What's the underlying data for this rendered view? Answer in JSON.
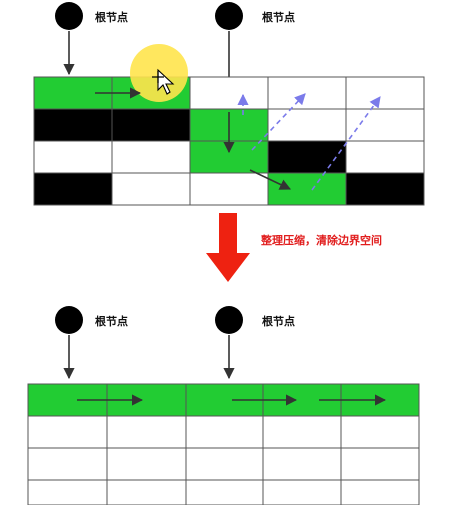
{
  "root_label": "根节点",
  "caption": "整理压缩，清除边界空间",
  "colors": {
    "live": "#22cc33",
    "garbage": "#000000",
    "free": "#ffffff",
    "grid_line": "#555555",
    "cursor_highlight": "#ffe44d",
    "dashed_arrow": "#7b7bea",
    "compact_arrow": "#ee2211"
  },
  "before_grid": {
    "rows": 4,
    "cols": 5,
    "cells": [
      [
        "live",
        "live",
        "free",
        "free",
        "free"
      ],
      [
        "garbage",
        "garbage",
        "live",
        "free",
        "free"
      ],
      [
        "free",
        "free",
        "live",
        "garbage",
        "free"
      ],
      [
        "garbage",
        "free",
        "free",
        "live",
        "garbage"
      ]
    ]
  },
  "after_grid": {
    "rows": 4,
    "cols": 5,
    "cells": [
      [
        "live",
        "live",
        "live",
        "live",
        "live"
      ],
      [
        "free",
        "free",
        "free",
        "free",
        "free"
      ],
      [
        "free",
        "free",
        "free",
        "free",
        "free"
      ],
      [
        "free",
        "free",
        "free",
        "free",
        "free"
      ]
    ]
  },
  "icons": {
    "root_node": "filled-circle",
    "cursor": "move-cursor-icon",
    "compact": "down-arrow-icon"
  }
}
